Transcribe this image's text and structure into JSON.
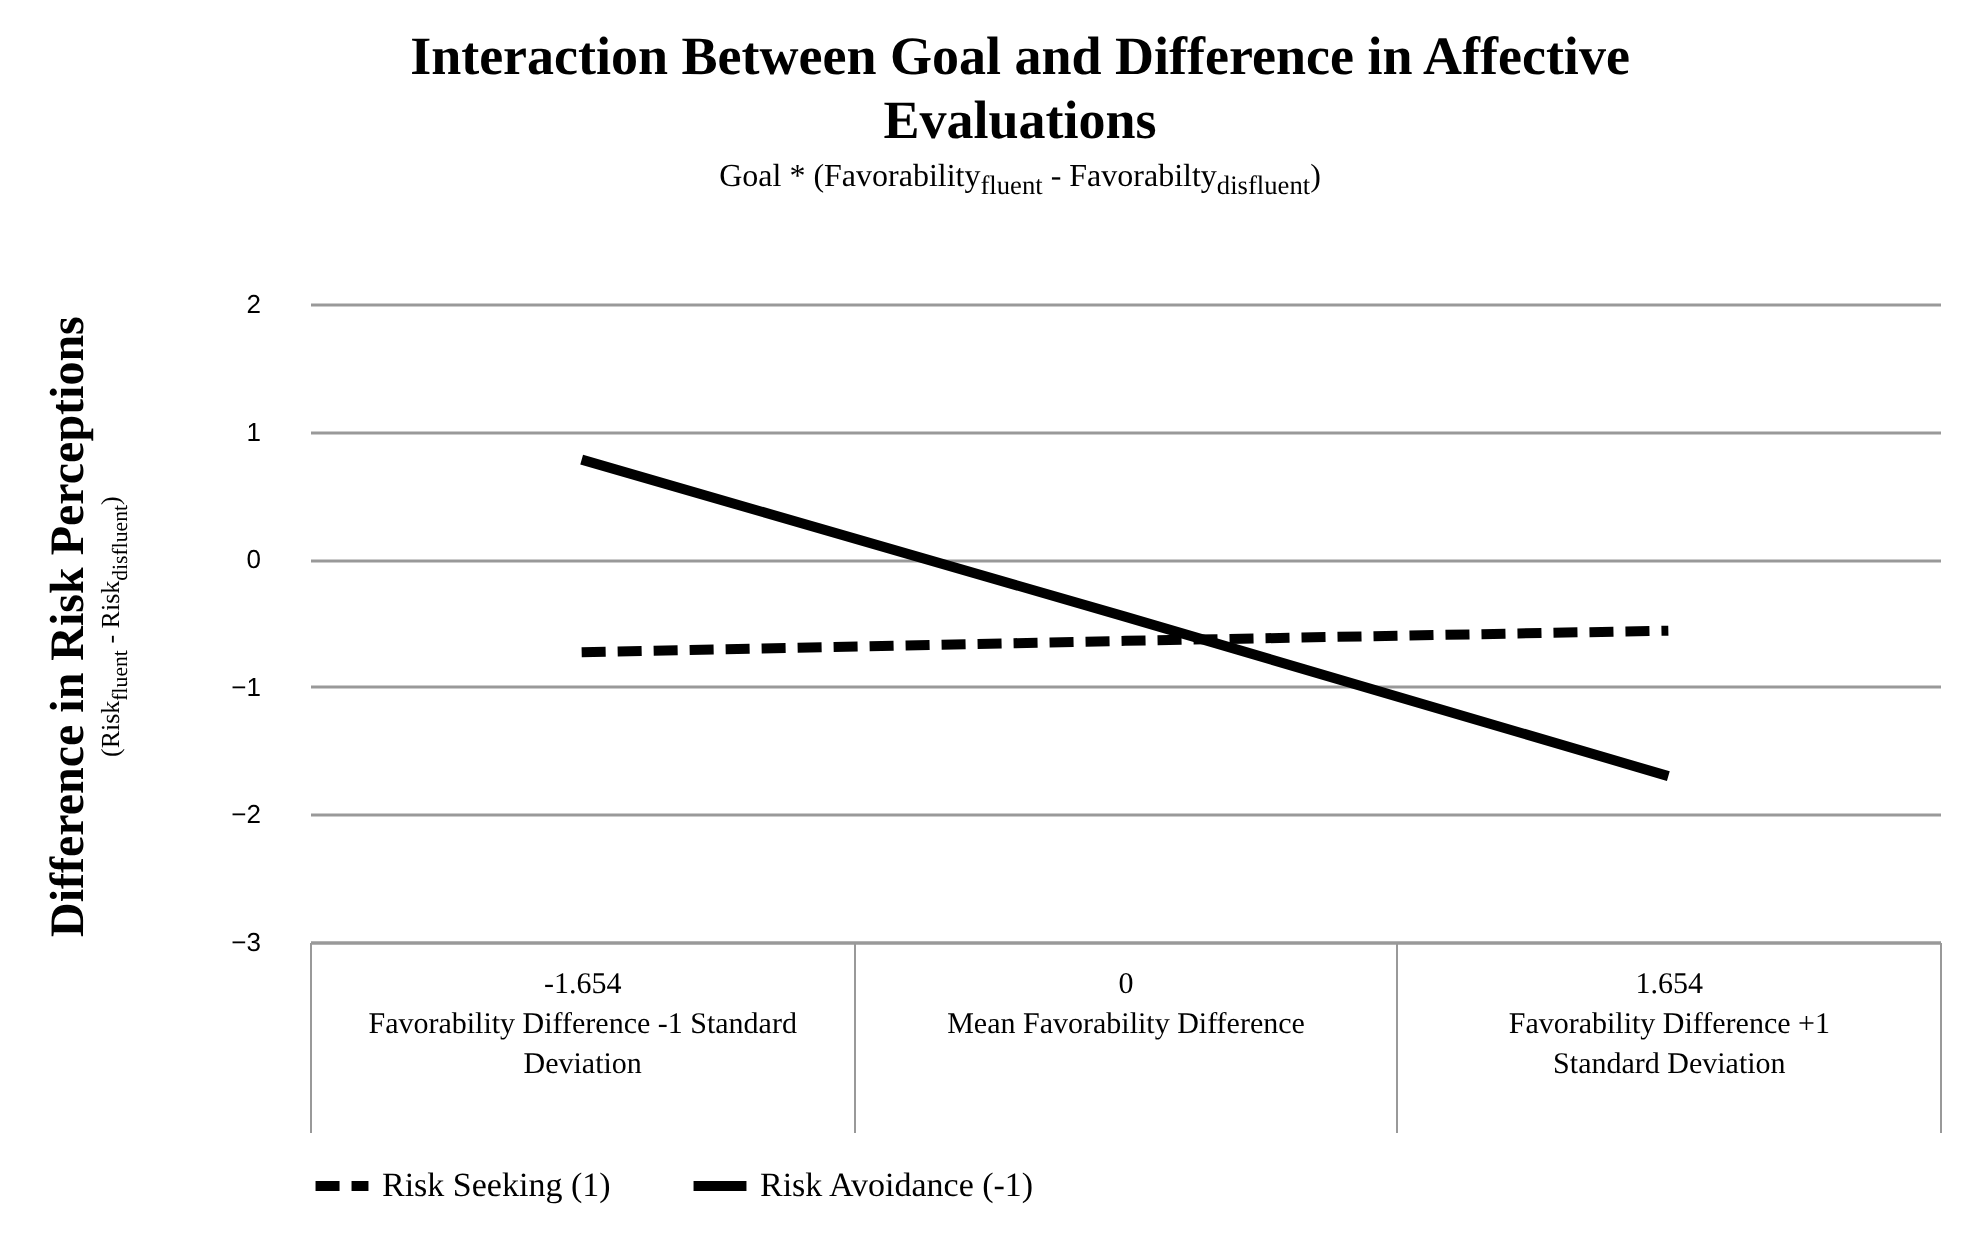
{
  "chart_data": {
    "type": "line",
    "title": "Interaction Between Goal and Difference in Affective Evaluations",
    "subtitle": "Goal * (Favorability$_{fluent}$ - Favorabilty$_{disfluent}$)",
    "ylabel": "Difference in Risk Perceptions\n(Risk$_{fluent}$ - Risk$_{disfluent}$)",
    "categories": [
      "-1.654\n \nFavorability Difference -1 Standard\nDeviation",
      "0\n \nMean Favorability Difference",
      "1.654\n \nFavorability Difference +1\nStandard Deviation"
    ],
    "series": [
      {
        "name": "Risk Seeking (1)",
        "color": "#000000",
        "line_style": "dashed",
        "values": [
          -0.73,
          -0.64,
          -0.56
        ]
      },
      {
        "name": "Risk Avoidance (-1)",
        "color": "#000000",
        "line_style": "solid",
        "values": [
          0.78,
          -0.45,
          -1.7
        ]
      }
    ],
    "ylim": [
      -3,
      2
    ],
    "yticks": [
      -3,
      -2,
      -1,
      0,
      1,
      2
    ],
    "grid": "y",
    "legend": "bottom"
  }
}
